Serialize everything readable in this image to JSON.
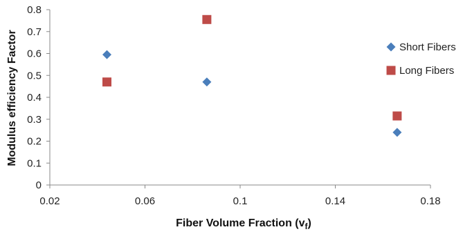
{
  "chart_data": {
    "type": "scatter",
    "title": "",
    "xlabel": "Fiber Volume Fraction (v",
    "xlabel_subscript": "f",
    "xlabel_suffix": ")",
    "ylabel": "Modulus efficiency Factor",
    "xlim": [
      0.02,
      0.18
    ],
    "ylim": [
      0,
      0.8
    ],
    "x_ticks": [
      "0.02",
      "0.06",
      "0.1",
      "0.14",
      "0.18"
    ],
    "y_ticks": [
      "0",
      "0.1",
      "0.2",
      "0.3",
      "0.4",
      "0.5",
      "0.6",
      "0.7",
      "0.8"
    ],
    "grid": false,
    "legend_position": "right",
    "series": [
      {
        "name": "Short Fibers",
        "marker": "diamond",
        "color": "#4a7ebb",
        "points": [
          {
            "x": 0.044,
            "y": 0.595
          },
          {
            "x": 0.086,
            "y": 0.47
          },
          {
            "x": 0.166,
            "y": 0.24
          }
        ]
      },
      {
        "name": "Long Fibers",
        "marker": "square",
        "color": "#be4b48",
        "points": [
          {
            "x": 0.044,
            "y": 0.47
          },
          {
            "x": 0.086,
            "y": 0.755
          },
          {
            "x": 0.166,
            "y": 0.315
          }
        ]
      }
    ]
  }
}
